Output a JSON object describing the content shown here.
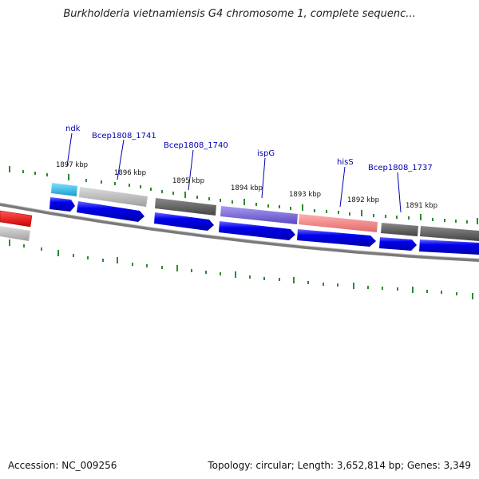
{
  "title": "Burkholderia vietnamiensis G4 chromosome 1, complete sequenc...",
  "footer": {
    "accession": "Accession: NC_009256",
    "stats": "Topology: circular; Length: 3,652,814 bp; Genes: 3,349"
  },
  "kbp_labels": [
    "1897 kbp",
    "1896 kbp",
    "1895 kbp",
    "1894 kbp",
    "1893 kbp",
    "1892 kbp",
    "1891 kbp"
  ],
  "gene_labels": [
    "ndk",
    "Bcep1808_1741",
    "Bcep1808_1740",
    "ispG",
    "hisS",
    "Bcep1808_1737"
  ],
  "colors": {
    "axis_ticks": "#2e8b2e",
    "cds_strand": "#0000ee",
    "label_text": "#0000b0",
    "gene_ndk": "#29b6e6",
    "gene_light_grey": "#b5b5b5",
    "gene_dark_grey": "#5e5e5e",
    "gene_ispG": "#7b68d8",
    "gene_hisS": "#f08a8a",
    "gene_red": "#ee1111"
  }
}
